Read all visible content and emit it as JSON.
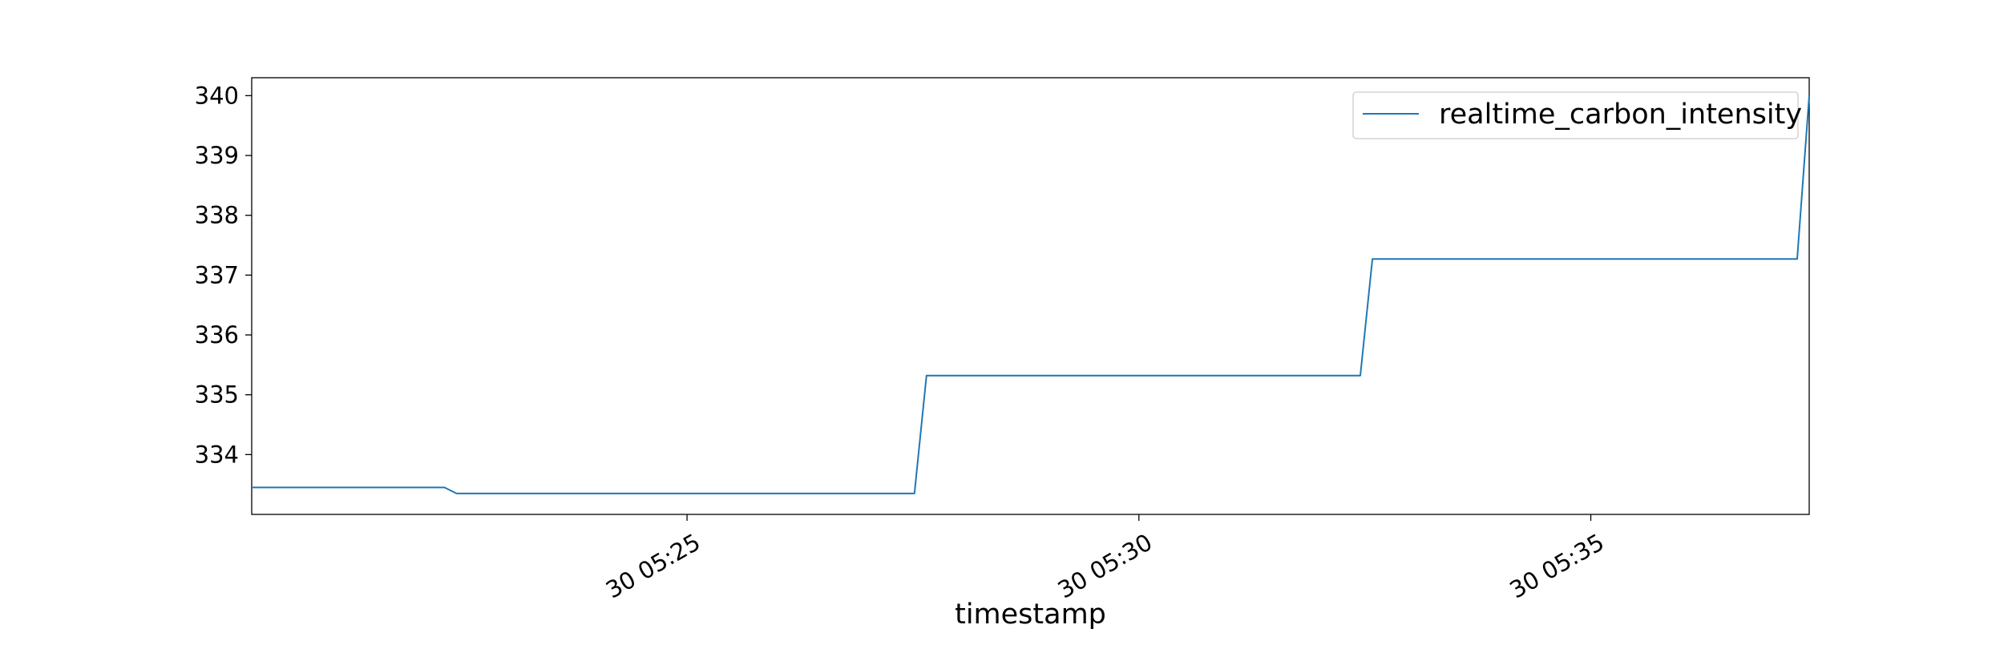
{
  "colors": {
    "series": "#1f77b4",
    "axes": "#000000",
    "legend_border": "#cccccc",
    "background": "#ffffff"
  },
  "chart_data": {
    "type": "line",
    "title": "",
    "xlabel": "timestamp",
    "ylabel": "",
    "x_axis_kind": "datetime",
    "xlim": [
      "05:20:11",
      "05:37:25"
    ],
    "ylim": [
      333.0,
      340.3
    ],
    "x_ticks": [
      {
        "value": "05:25:00",
        "label": "30 05:25"
      },
      {
        "value": "05:30:00",
        "label": "30 05:30"
      },
      {
        "value": "05:35:00",
        "label": "30 05:35"
      }
    ],
    "y_ticks": [
      334,
      335,
      336,
      337,
      338,
      339,
      340
    ],
    "grid": false,
    "legend": {
      "position": "top-right"
    },
    "series": [
      {
        "name": "realtime_carbon_intensity",
        "color": "#1f77b4",
        "points": [
          {
            "x": "05:20:11",
            "y": 333.45
          },
          {
            "x": "05:22:19",
            "y": 333.45
          },
          {
            "x": "05:22:27",
            "y": 333.35
          },
          {
            "x": "05:27:31",
            "y": 333.35
          },
          {
            "x": "05:27:39",
            "y": 335.32
          },
          {
            "x": "05:32:27",
            "y": 335.32
          },
          {
            "x": "05:32:35",
            "y": 337.27
          },
          {
            "x": "05:37:17",
            "y": 337.27
          },
          {
            "x": "05:37:25",
            "y": 340.0
          }
        ]
      }
    ]
  }
}
